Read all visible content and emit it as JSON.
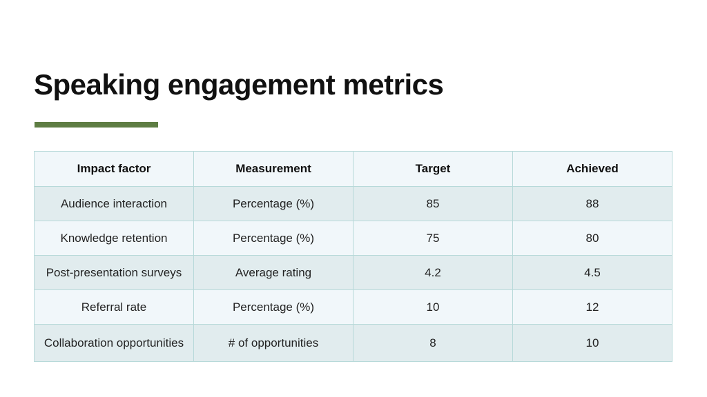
{
  "slide": {
    "title": "Speaking engagement metrics",
    "accent_color": "#5e7d43"
  },
  "table": {
    "headers": [
      "Impact factor",
      "Measurement",
      "Target",
      "Achieved"
    ],
    "rows": [
      [
        "Audience interaction",
        "Percentage (%)",
        "85",
        "88"
      ],
      [
        "Knowledge retention",
        "Percentage (%)",
        "75",
        "80"
      ],
      [
        "Post-presentation surveys",
        "Average rating",
        "4.2",
        "4.5"
      ],
      [
        "Referral rate",
        "Percentage (%)",
        "10",
        "12"
      ],
      [
        "Collaboration opportunities",
        "# of opportunities",
        "8",
        "10"
      ]
    ],
    "colors": {
      "border": "#b7d9d9",
      "row_shaded": "#e1ecee",
      "row_light": "#f1f7fa"
    }
  }
}
